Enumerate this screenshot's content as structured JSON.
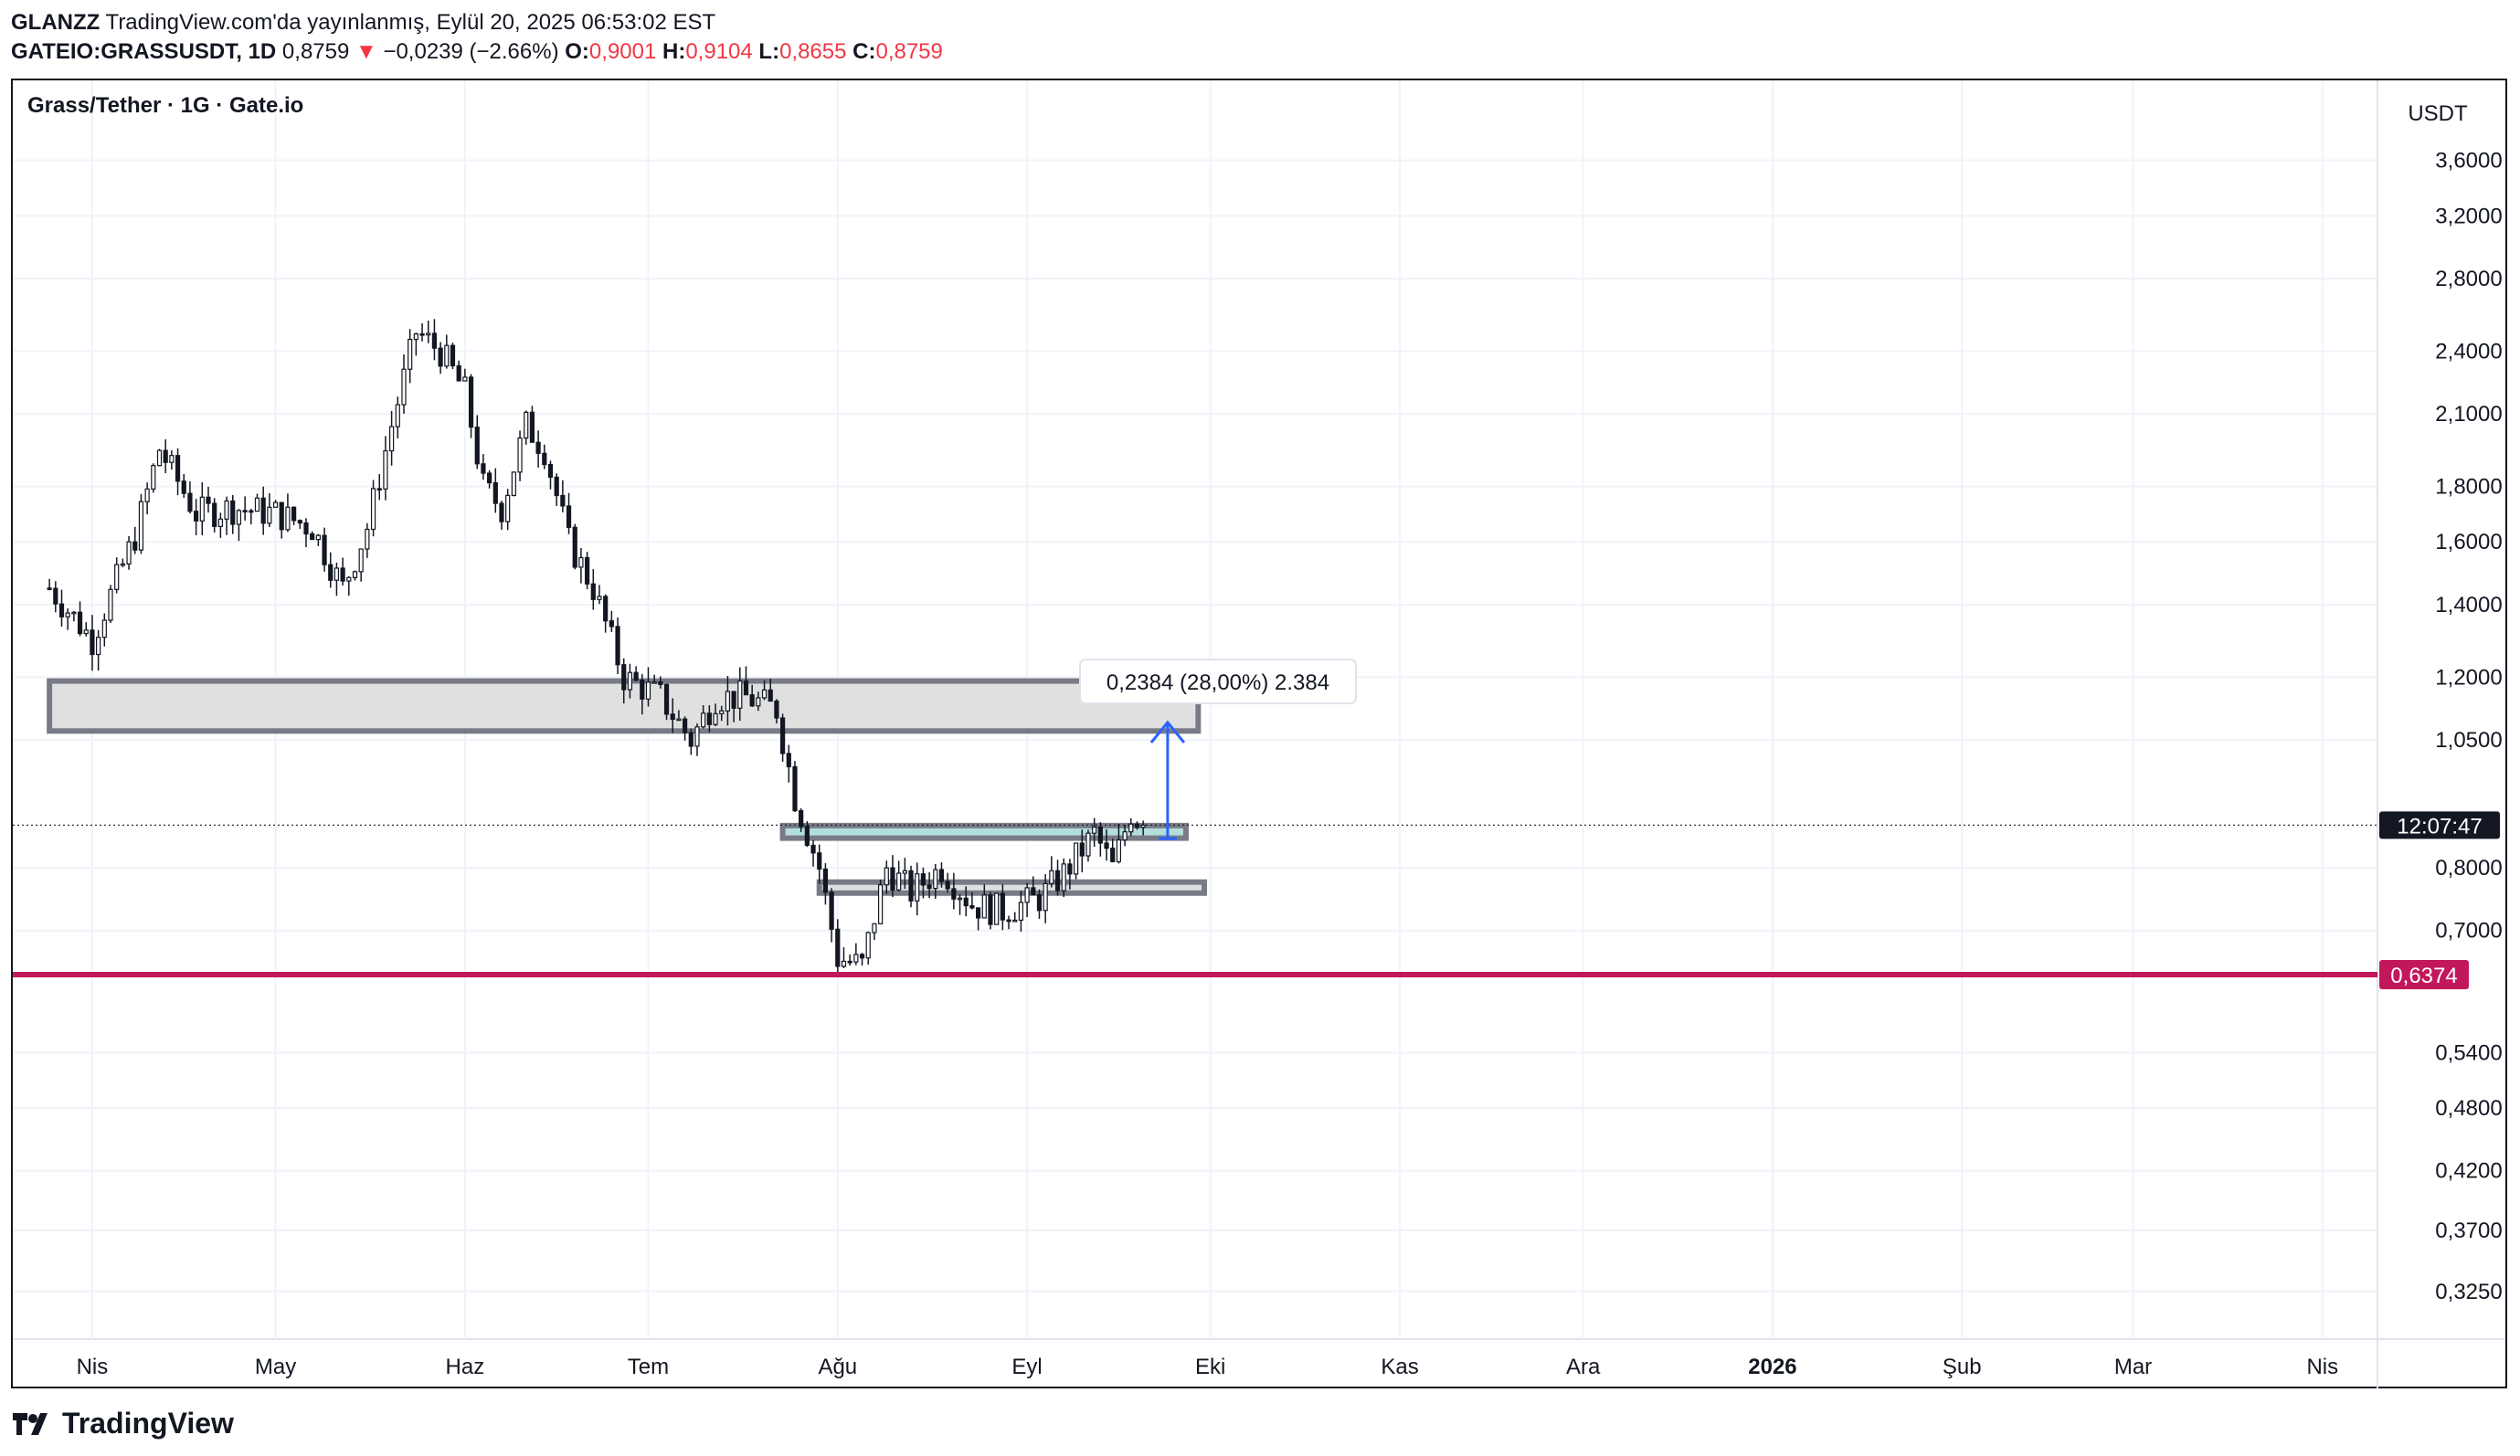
{
  "header": {
    "author": "GLANZZ",
    "published": "TradingView.com'da yayınlanmış, Eylül 20, 2025 06:53:02 EST",
    "symbol": "GATEIO:GRASSUSDT, 1D",
    "last": "0,8759",
    "change": "−0,0239 (−2.66%)",
    "o_label": "O:",
    "o_value": "0,9001",
    "h_label": "H:",
    "h_value": "0,9104",
    "l_label": "L:",
    "l_value": "0,8655",
    "c_label": "C:",
    "c_value": "0,8759"
  },
  "legend": "Grass/Tether · 1G · Gate.io",
  "footer": {
    "brand": "TradingView"
  },
  "colors": {
    "up": "#131722",
    "down": "#131722",
    "support_line": "#c2185b",
    "arrow": "#2962ff",
    "zone_fill": "#e0e0e0",
    "zone_fill_teal": "#b2dfdb",
    "zone_border": "#787b86"
  },
  "chart_data": {
    "type": "candlestick",
    "title": "Grass/Tether · 1G · Gate.io",
    "y_unit": "USDT",
    "y_scale": "log",
    "y_ticks": [
      "3,6000",
      "3,2000",
      "2,8000",
      "2,4000",
      "2,1000",
      "1,8000",
      "1,6000",
      "1,4000",
      "1,2000",
      "1,0500",
      "0,8000",
      "0,7000",
      "0,5400",
      "0,4800",
      "0,4200",
      "0,3700",
      "0,3250"
    ],
    "y_tick_values": [
      3.6,
      3.2,
      2.8,
      2.4,
      2.1,
      1.8,
      1.6,
      1.4,
      1.2,
      1.05,
      0.8,
      0.7,
      0.54,
      0.48,
      0.42,
      0.37,
      0.325
    ],
    "x_ticks": [
      "Nis",
      "May",
      "Haz",
      "Tem",
      "Ağu",
      "Eyl",
      "Eki",
      "Kas",
      "Ara",
      "2026",
      "Şub",
      "Mar",
      "Nis"
    ],
    "x_tick_dates": [
      "2025-04-01",
      "2025-05-01",
      "2025-06-01",
      "2025-07-01",
      "2025-08-01",
      "2025-09-01",
      "2025-10-01",
      "2025-11-01",
      "2025-12-01",
      "2026-01-01",
      "2026-02-01",
      "2026-03-01",
      "2026-04-01"
    ],
    "price_label": "0,8759",
    "countdown_label": "12:07:47",
    "support_label": "0,6374",
    "support_value": 0.6374,
    "measure_label": "0,2384 (28,00%) 2.384",
    "measure_from": 0.8513,
    "measure_to": 1.0897,
    "zones": [
      {
        "name": "resistance-zone",
        "from": "2025-03-25",
        "to": "2025-09-29",
        "top": 1.19,
        "bottom": 1.07
      },
      {
        "name": "upper-support-zone",
        "from": "2025-07-23",
        "to": "2025-09-27",
        "top": 0.875,
        "bottom": 0.852
      },
      {
        "name": "lower-support-zone",
        "from": "2025-07-29",
        "to": "2025-09-30",
        "top": 0.776,
        "bottom": 0.758
      }
    ],
    "ohlc_anchors": [
      [
        "2025-03-25",
        1.45
      ],
      [
        "2025-04-01",
        1.3
      ],
      [
        "2025-04-08",
        1.62
      ],
      [
        "2025-04-12",
        1.95
      ],
      [
        "2025-04-18",
        1.7
      ],
      [
        "2025-04-24",
        1.72
      ],
      [
        "2025-05-01",
        1.7
      ],
      [
        "2025-05-07",
        1.65
      ],
      [
        "2025-05-12",
        1.45
      ],
      [
        "2025-05-16",
        1.65
      ],
      [
        "2025-05-20",
        2.05
      ],
      [
        "2025-05-24",
        2.5
      ],
      [
        "2025-05-28",
        2.4
      ],
      [
        "2025-06-01",
        2.2
      ],
      [
        "2025-06-04",
        1.8
      ],
      [
        "2025-06-07",
        1.72
      ],
      [
        "2025-06-11",
        2.05
      ],
      [
        "2025-06-14",
        1.95
      ],
      [
        "2025-06-18",
        1.6
      ],
      [
        "2025-06-22",
        1.45
      ],
      [
        "2025-06-27",
        1.2
      ],
      [
        "2025-07-03",
        1.15
      ],
      [
        "2025-07-08",
        1.05
      ],
      [
        "2025-07-12",
        1.15
      ],
      [
        "2025-07-17",
        1.15
      ],
      [
        "2025-07-22",
        1.12
      ],
      [
        "2025-07-25",
        0.93
      ],
      [
        "2025-07-29",
        0.8
      ],
      [
        "2025-08-01",
        0.66
      ],
      [
        "2025-08-05",
        0.65
      ],
      [
        "2025-08-09",
        0.8
      ],
      [
        "2025-08-13",
        0.76
      ],
      [
        "2025-08-18",
        0.8
      ],
      [
        "2025-08-23",
        0.74
      ],
      [
        "2025-08-28",
        0.73
      ],
      [
        "2025-09-03",
        0.75
      ],
      [
        "2025-09-07",
        0.79
      ],
      [
        "2025-09-12",
        0.86
      ],
      [
        "2025-09-15",
        0.8
      ],
      [
        "2025-09-18",
        0.9
      ],
      [
        "2025-09-20",
        0.8759
      ]
    ]
  }
}
